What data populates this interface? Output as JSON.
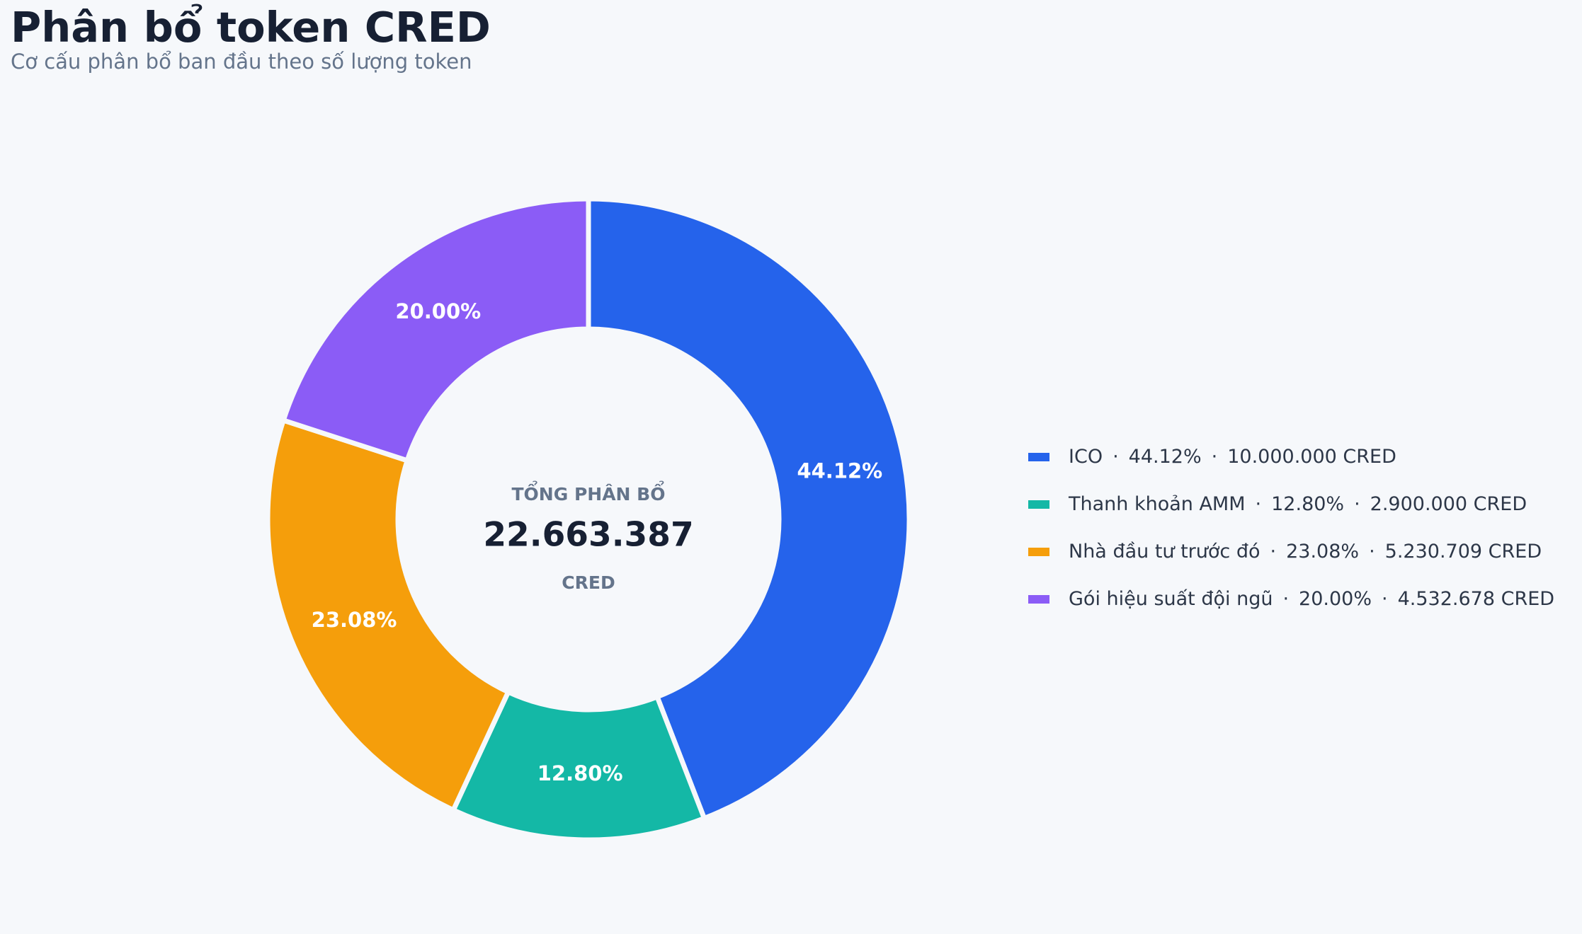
{
  "header": {
    "title": "Phân bổ token CRED",
    "subtitle": "Cơ cấu phân bổ ban đầu theo số lượng token"
  },
  "center": {
    "label": "TỔNG PHÂN BỔ",
    "total": "22.663.387",
    "unit": "CRED"
  },
  "legend_separator": "·",
  "chart_data": {
    "type": "pie",
    "variant": "donut",
    "title": "Phân bổ token CRED",
    "subtitle": "Cơ cấu phân bổ ban đầu theo số lượng token",
    "total": 22663387,
    "unit": "CRED",
    "legend_position": "right",
    "slices": [
      {
        "name": "ICO",
        "value": 10000000,
        "percent": 44.12,
        "percent_label": "44.12%",
        "amount_label": "10.000.000 CRED",
        "color": "#2563eb"
      },
      {
        "name": "Thanh khoản AMM",
        "value": 2900000,
        "percent": 12.8,
        "percent_label": "12.80%",
        "amount_label": "2.900.000 CRED",
        "color": "#14b8a6"
      },
      {
        "name": "Nhà đầu tư trước đó",
        "value": 5230709,
        "percent": 23.08,
        "percent_label": "23.08%",
        "amount_label": "5.230.709 CRED",
        "color": "#f59e0b"
      },
      {
        "name": "Gói hiệu suất đội ngũ",
        "value": 4532678,
        "percent": 20.0,
        "percent_label": "20.00%",
        "amount_label": "4.532.678 CRED",
        "color": "#8b5cf6"
      }
    ]
  }
}
